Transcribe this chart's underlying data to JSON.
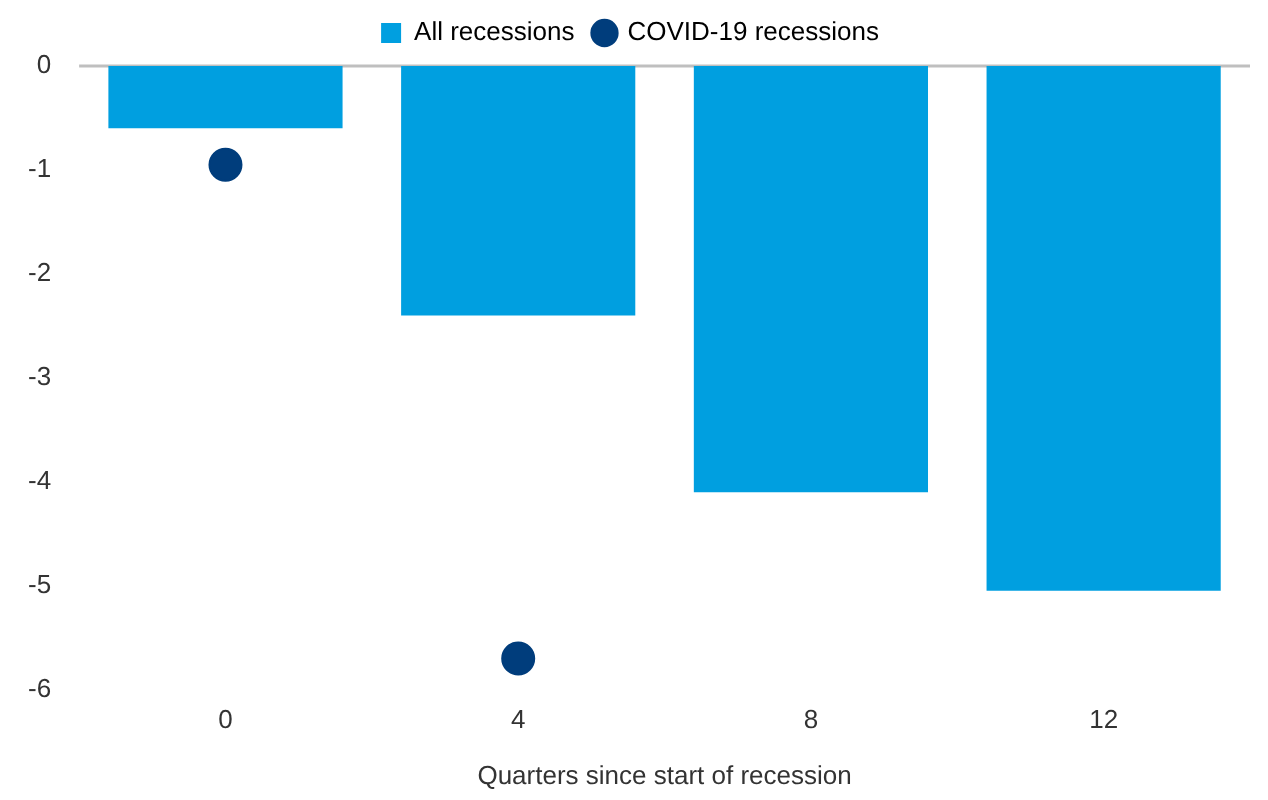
{
  "chart_data": {
    "type": "bar",
    "xlabel": "Quarters since start of recession",
    "categories": [
      "0",
      "4",
      "8",
      "12"
    ],
    "series": [
      {
        "name": "All recessions",
        "color": "#009fe0",
        "values": [
          -0.6,
          -2.4,
          -4.1,
          -5.05
        ]
      },
      {
        "name": "COVID-19 recessions",
        "type": "scatter",
        "x": [
          "0",
          "4",
          "8",
          "12"
        ],
        "color": "#003d7c",
        "values": [
          -0.95,
          -5.7,
          null,
          null
        ]
      }
    ],
    "ylim": [
      -6,
      0
    ],
    "yticks": [
      -6,
      -5,
      -4,
      -3,
      -2,
      -1,
      0
    ],
    "grid": false,
    "legend": "top",
    "marker": "circle",
    "ref_lines": [
      {
        "axis": "y",
        "value": 0,
        "color": "#bfbfbf"
      }
    ]
  }
}
